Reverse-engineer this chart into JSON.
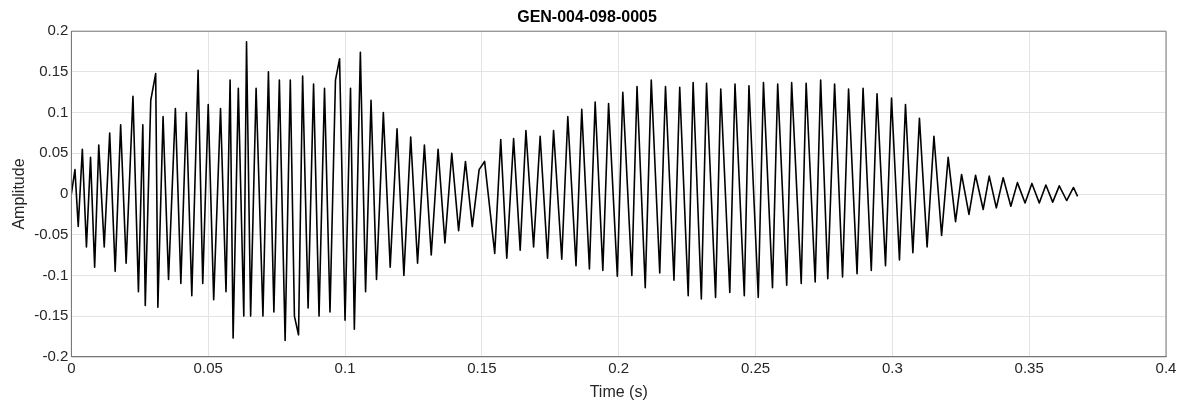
{
  "chart_data": {
    "type": "line",
    "title": "GEN-004-098-0005",
    "xlabel": "Time (s)",
    "ylabel": "Amplitude",
    "xlim": [
      0,
      0.4
    ],
    "xticks": [
      0,
      0.05,
      0.1,
      0.15,
      0.2,
      0.25,
      0.3,
      0.35,
      0.4
    ],
    "ylim": [
      -0.2,
      0.2
    ],
    "yticks": [
      -0.2,
      -0.15,
      -0.1,
      -0.05,
      0,
      0.05,
      0.1,
      0.15,
      0.2
    ],
    "grid": true,
    "marker": "none",
    "line_style": "solid",
    "series": [
      {
        "color": "#000000",
        "x": [
          0,
          0.0013,
          0.0025,
          0.004,
          0.0055,
          0.007,
          0.0085,
          0.01,
          0.012,
          0.014,
          0.016,
          0.018,
          0.02,
          0.0225,
          0.0245,
          0.0261,
          0.027,
          0.029,
          0.0308,
          0.0316,
          0.0335,
          0.0355,
          0.038,
          0.04,
          0.042,
          0.044,
          0.0463,
          0.048,
          0.05,
          0.052,
          0.0545,
          0.0565,
          0.058,
          0.0591,
          0.061,
          0.063,
          0.064,
          0.0655,
          0.0675,
          0.07,
          0.072,
          0.074,
          0.076,
          0.0781,
          0.08,
          0.0815,
          0.083,
          0.0845,
          0.0865,
          0.0885,
          0.0905,
          0.0925,
          0.0945,
          0.0965,
          0.098,
          0.1,
          0.102,
          0.1034,
          0.1056,
          0.1075,
          0.1095,
          0.1115,
          0.114,
          0.1165,
          0.119,
          0.1215,
          0.124,
          0.1265,
          0.129,
          0.1315,
          0.134,
          0.1365,
          0.139,
          0.1415,
          0.144,
          0.1465,
          0.149,
          0.151,
          0.1547,
          0.1569,
          0.1591,
          0.1616,
          0.164,
          0.1661,
          0.1689,
          0.1713,
          0.174,
          0.1762,
          0.1792,
          0.1814,
          0.1844,
          0.1865,
          0.1893,
          0.1914,
          0.1942,
          0.1963,
          0.1995,
          0.2015,
          0.2048,
          0.2067,
          0.2097,
          0.2119,
          0.215,
          0.2171,
          0.2202,
          0.2223,
          0.2254,
          0.2272,
          0.2302,
          0.2321,
          0.2354,
          0.2373,
          0.2406,
          0.2425,
          0.2459,
          0.2476,
          0.251,
          0.2529,
          0.2562,
          0.2581,
          0.2614,
          0.2632,
          0.2667,
          0.2685,
          0.2718,
          0.2738,
          0.2764,
          0.2789,
          0.2818,
          0.284,
          0.2871,
          0.2893,
          0.2923,
          0.2944,
          0.2975,
          0.2997,
          0.3026,
          0.3048,
          0.3075,
          0.3099,
          0.3127,
          0.3152,
          0.318,
          0.3204,
          0.3231,
          0.3253,
          0.328,
          0.3304,
          0.3332,
          0.3354,
          0.338,
          0.3405,
          0.3433,
          0.3457,
          0.3485,
          0.351,
          0.3537,
          0.3561,
          0.3586,
          0.361,
          0.3637,
          0.3662,
          0.3677
        ],
        "values": [
          0,
          0.03,
          -0.04,
          0.055,
          -0.065,
          0.045,
          -0.09,
          0.06,
          -0.065,
          0.075,
          -0.095,
          0.085,
          -0.085,
          0.12,
          -0.12,
          0.085,
          -0.137,
          0.115,
          0.148,
          -0.139,
          0.095,
          -0.105,
          0.105,
          -0.11,
          0.1,
          -0.125,
          0.152,
          -0.11,
          0.11,
          -0.13,
          0.105,
          -0.12,
          0.14,
          -0.177,
          0.13,
          -0.15,
          0.187,
          -0.15,
          0.13,
          -0.15,
          0.15,
          -0.145,
          0.14,
          -0.18,
          0.14,
          -0.15,
          -0.173,
          0.145,
          -0.14,
          0.135,
          -0.15,
          0.13,
          -0.145,
          0.14,
          0.166,
          -0.155,
          0.13,
          -0.166,
          0.174,
          -0.12,
          0.115,
          -0.105,
          0.1,
          -0.09,
          0.08,
          -0.1,
          0.07,
          -0.085,
          0.06,
          -0.075,
          0.055,
          -0.06,
          0.05,
          -0.045,
          0.04,
          -0.04,
          0.03,
          0.04,
          -0.073,
          0.067,
          -0.079,
          0.068,
          -0.069,
          0.078,
          -0.065,
          0.071,
          -0.079,
          0.078,
          -0.08,
          0.095,
          -0.088,
          0.104,
          -0.092,
          0.113,
          -0.094,
          0.111,
          -0.101,
          0.125,
          -0.1,
          0.132,
          -0.115,
          0.14,
          -0.097,
          0.132,
          -0.106,
          0.131,
          -0.125,
          0.137,
          -0.129,
          0.136,
          -0.127,
          0.129,
          -0.121,
          0.135,
          -0.125,
          0.133,
          -0.127,
          0.137,
          -0.115,
          0.135,
          -0.112,
          0.137,
          -0.11,
          0.136,
          -0.108,
          0.14,
          -0.104,
          0.135,
          -0.102,
          0.129,
          -0.098,
          0.13,
          -0.094,
          0.123,
          -0.088,
          0.118,
          -0.081,
          0.11,
          -0.072,
          0.093,
          -0.065,
          0.071,
          -0.051,
          0.045,
          -0.034,
          0.024,
          -0.025,
          0.023,
          -0.019,
          0.022,
          -0.017,
          0.02,
          -0.015,
          0.014,
          -0.011,
          0.013,
          -0.011,
          0.011,
          -0.01,
          0.01,
          -0.008,
          0.008,
          -0.003
        ]
      }
    ]
  }
}
